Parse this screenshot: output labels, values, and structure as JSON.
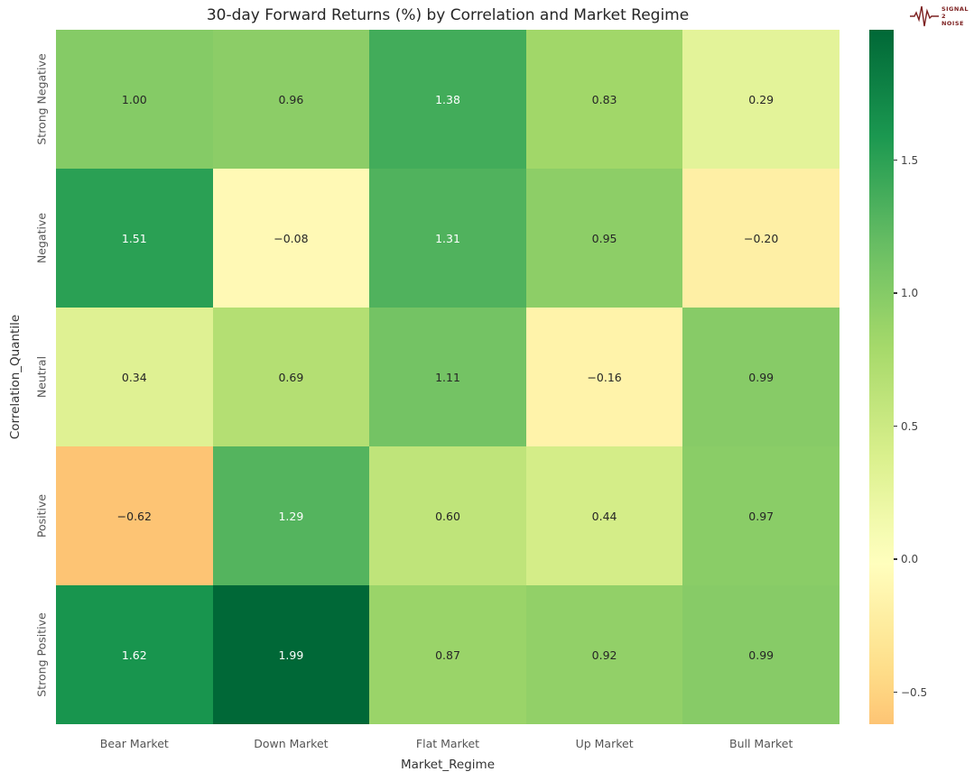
{
  "logo": {
    "text_lines": [
      "SIGNAL",
      "2",
      "NOISE"
    ],
    "color": "#7c2020"
  },
  "chart_data": {
    "type": "heatmap",
    "title": "30-day Forward Returns (%) by Correlation and Market Regime",
    "xlabel": "Market_Regime",
    "ylabel": "Correlation_Quantile",
    "x_categories": [
      "Bear Market",
      "Down Market",
      "Flat Market",
      "Up Market",
      "Bull Market"
    ],
    "y_categories": [
      "Strong Negative",
      "Negative",
      "Neutral",
      "Positive",
      "Strong Positive"
    ],
    "values": [
      [
        1.0,
        0.96,
        1.38,
        0.83,
        0.29
      ],
      [
        1.51,
        -0.08,
        1.31,
        0.95,
        -0.2
      ],
      [
        0.34,
        0.69,
        1.11,
        -0.16,
        0.99
      ],
      [
        -0.62,
        1.29,
        0.6,
        0.44,
        0.97
      ],
      [
        1.62,
        1.99,
        0.87,
        0.92,
        0.99
      ]
    ],
    "annotation_decimals": 2,
    "colormap": {
      "name": "RdYlGn",
      "anchors": [
        "#a50026",
        "#d73027",
        "#f46d43",
        "#fdae61",
        "#fee08b",
        "#ffffbf",
        "#d9ef8b",
        "#a6d96a",
        "#66bd63",
        "#1a9850",
        "#006837"
      ],
      "norm_vmin": -1.99,
      "norm_vmax": 1.99
    },
    "annotation_colors": {
      "dark": "#262626",
      "light": "#ffffff"
    },
    "colorbar": {
      "data_min": -0.62,
      "data_max": 1.99,
      "ticks": [
        1.5,
        1.0,
        0.5,
        0.0,
        -0.5
      ],
      "tick_labels": [
        "1.5",
        "1.0",
        "0.5",
        "0.0",
        "−0.5"
      ]
    },
    "legend_position": "right",
    "grid": false
  }
}
